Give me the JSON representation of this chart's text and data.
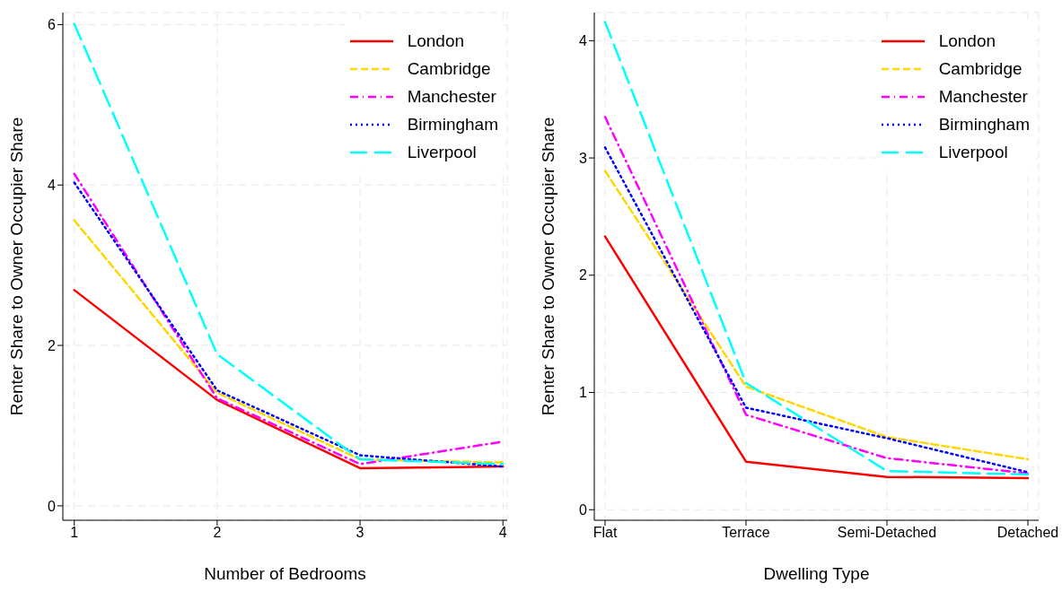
{
  "chart_data": [
    {
      "type": "line",
      "xlabel": "Number of Bedrooms",
      "ylabel": "Renter Share to Owner Occupier Share",
      "x": [
        1,
        2,
        3,
        4
      ],
      "xlim": [
        0.92,
        4.03
      ],
      "xticks": [
        1,
        2,
        3,
        4
      ],
      "ylim": [
        -0.18,
        6.15
      ],
      "yticks": [
        0,
        2,
        4,
        6
      ],
      "grid": true,
      "legend": "top right",
      "marker": "none",
      "series": [
        {
          "name": "London",
          "color": "#ff0000",
          "line_style": "solid",
          "values": [
            2.69,
            1.32,
            0.47,
            0.49
          ]
        },
        {
          "name": "Cambridge",
          "color": "#ffd700",
          "line_style": "dashed",
          "values": [
            3.56,
            1.41,
            0.58,
            0.54
          ]
        },
        {
          "name": "Manchester",
          "color": "#ff00ff",
          "line_style": "dashdot",
          "values": [
            4.14,
            1.34,
            0.52,
            0.8
          ]
        },
        {
          "name": "Birmingham",
          "color": "#0000ff",
          "line_style": "dotted",
          "values": [
            4.03,
            1.44,
            0.63,
            0.49
          ]
        },
        {
          "name": "Liverpool",
          "color": "#00ffff",
          "line_style": "longdash",
          "values": [
            6.01,
            1.89,
            0.58,
            0.52
          ]
        }
      ]
    },
    {
      "type": "line",
      "xlabel": "Dwelling Type",
      "ylabel": "Renter Share to Owner Occupier Share",
      "categories": [
        "Flat",
        "Terrace",
        "Semi-Detached",
        "Detached"
      ],
      "ylim": [
        -0.09,
        4.24
      ],
      "yticks": [
        0,
        1,
        2,
        3,
        4
      ],
      "grid": true,
      "legend": "top right",
      "marker": "none",
      "series": [
        {
          "name": "London",
          "color": "#ff0000",
          "line_style": "solid",
          "values": [
            2.33,
            0.41,
            0.28,
            0.27
          ]
        },
        {
          "name": "Cambridge",
          "color": "#ffd700",
          "line_style": "dashed",
          "values": [
            2.89,
            1.05,
            0.62,
            0.43
          ]
        },
        {
          "name": "Manchester",
          "color": "#ff00ff",
          "line_style": "dashdot",
          "values": [
            3.35,
            0.81,
            0.44,
            0.31
          ]
        },
        {
          "name": "Birmingham",
          "color": "#0000ff",
          "line_style": "dotted",
          "values": [
            3.09,
            0.87,
            0.61,
            0.32
          ]
        },
        {
          "name": "Liverpool",
          "color": "#00ffff",
          "line_style": "longdash",
          "values": [
            4.16,
            1.08,
            0.33,
            0.3
          ]
        }
      ]
    }
  ]
}
